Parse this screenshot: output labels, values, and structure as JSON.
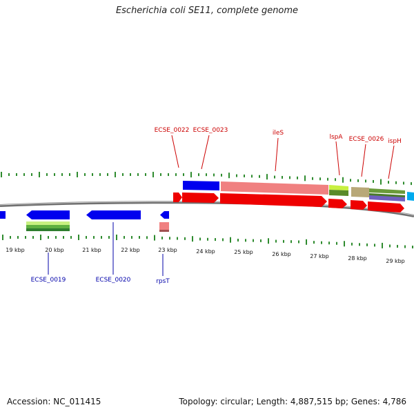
{
  "title": "Escherichia coli SE11, complete genome",
  "footer": {
    "accession": "Accession: NC_011415",
    "summary": "Topology: circular; Length: 4,887,515 bp; Genes: 4,786"
  },
  "colors": {
    "forward_gene": "#ff0000",
    "reverse_gene": "#0000ff",
    "top_label": "#cc0000",
    "bottom_label": "#0000aa",
    "tick": "#2e8b2e",
    "backbone": "#808080",
    "rrna_like": "#f08080"
  },
  "axis": {
    "unit": "kbp",
    "labels": [
      "19 kbp",
      "20 kbp",
      "21 kbp",
      "22 kbp",
      "23 kbp",
      "24 kbp",
      "25 kbp",
      "26 kbp",
      "27 kbp",
      "28 kbp",
      "29 kbp"
    ]
  },
  "gene_labels_top": [
    {
      "name": "ECSE_0022",
      "color": "#cc0000"
    },
    {
      "name": "ECSE_0023",
      "color": "#cc0000"
    },
    {
      "name": "ileS",
      "color": "#cc0000"
    },
    {
      "name": "lspA",
      "color": "#cc0000"
    },
    {
      "name": "ECSE_0026",
      "color": "#cc0000"
    },
    {
      "name": "ispH",
      "color": "#cc0000"
    }
  ],
  "gene_labels_bottom": [
    {
      "name": "ECSE_0019",
      "color": "#0000aa"
    },
    {
      "name": "ECSE_0020",
      "color": "#0000aa"
    },
    {
      "name": "rpsT",
      "color": "#0000aa"
    }
  ]
}
